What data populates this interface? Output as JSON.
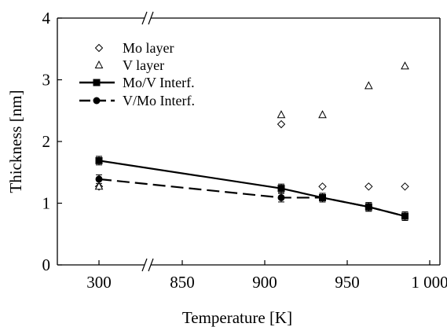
{
  "chart_data": {
    "type": "scatter",
    "xlabel": "Temperature [K]",
    "ylabel": "Thickness [nm]",
    "ylim": [
      0,
      4
    ],
    "x_ticks": [
      "300",
      "850",
      "900",
      "950",
      "1 000"
    ],
    "y_ticks": [
      "0",
      "1",
      "2",
      "3",
      "4"
    ],
    "x_axis_break": "between 300 and 850",
    "grid": false,
    "legend_position": "top-left",
    "series": [
      {
        "name": "Mo layer",
        "style": "open-diamond",
        "x": [
          300,
          910,
          935,
          963,
          985
        ],
        "y": [
          1.27,
          2.28,
          1.27,
          1.27,
          1.27
        ]
      },
      {
        "name": "V layer",
        "style": "open-triangle",
        "x": [
          300,
          910,
          935,
          963,
          985
        ],
        "y": [
          1.27,
          2.43,
          2.43,
          2.9,
          3.22
        ]
      },
      {
        "name": "Mo/V Interf.",
        "style": "solid-line-square",
        "x": [
          300,
          910,
          935,
          963,
          985
        ],
        "y": [
          1.69,
          1.24,
          1.09,
          0.94,
          0.79
        ],
        "errors": [
          0.07,
          0.07,
          0.07,
          0.07,
          0.07
        ]
      },
      {
        "name": "V/Mo Interf.",
        "style": "dashed-line-circle",
        "x": [
          300,
          910,
          935,
          963,
          985
        ],
        "y": [
          1.39,
          1.09,
          1.09,
          0.94,
          0.79
        ],
        "errors": [
          0.07,
          0.07,
          0.07,
          0.07,
          0.07
        ]
      }
    ]
  }
}
